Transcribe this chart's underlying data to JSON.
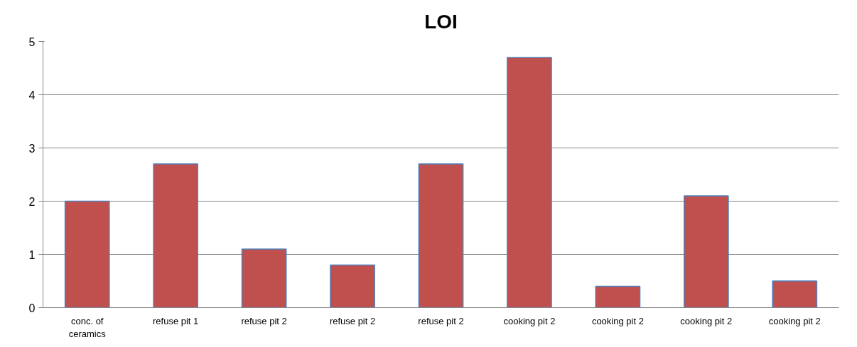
{
  "chart_data": {
    "type": "bar",
    "title": "LOI",
    "categories": [
      "conc. of ceramics",
      "refuse pit 1",
      "refuse pit 2",
      "refuse pit 2",
      "refuse pit 2",
      "cooking pit 2",
      "cooking pit 2",
      "cooking pit 2",
      "cooking pit 2"
    ],
    "values": [
      2.0,
      2.7,
      1.1,
      0.8,
      2.7,
      4.7,
      0.4,
      2.1,
      0.5
    ],
    "color": "#c0504d",
    "ylim": [
      0,
      5
    ],
    "yticks": [
      0,
      1,
      2,
      3,
      4,
      5
    ],
    "grid": "y"
  }
}
